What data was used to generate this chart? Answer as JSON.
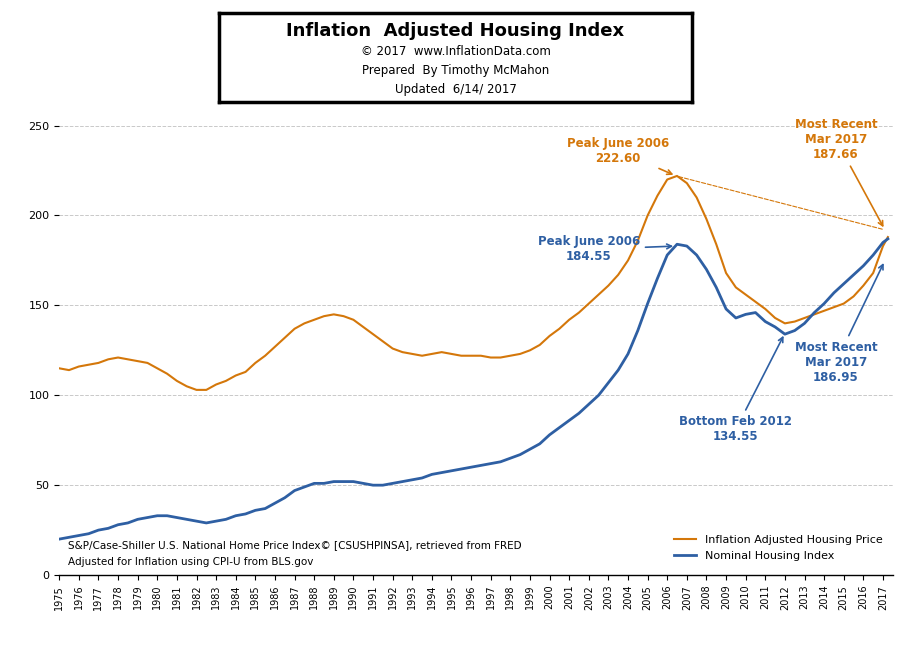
{
  "title": "Inflation  Adjusted Housing Index",
  "subtitle1": "© 2017  www.InflationData.com",
  "subtitle2": "Prepared  By Timothy McMahon",
  "subtitle3": "Updated  6/14/ 2017",
  "source_text1": "S&P/Case-Shiller U.S. National Home Price Index© [CSUSHPINSA], retrieved from FRED",
  "source_text2": "Adjusted for Inflation using CPI-U from BLS.gov",
  "legend1": "Inflation Adjusted Housing Price",
  "legend2": "Nominal Housing Index",
  "orange_color": "#D4770A",
  "blue_color": "#2E5FA3",
  "background_color": "#FFFFFF",
  "grid_color": "#BBBBBB",
  "ylim": [
    0,
    250
  ],
  "yticks": [
    0,
    50,
    100,
    150,
    200,
    250
  ],
  "years": [
    1975.0,
    1975.5,
    1976.0,
    1976.5,
    1977.0,
    1977.5,
    1978.0,
    1978.5,
    1979.0,
    1979.5,
    1980.0,
    1980.5,
    1981.0,
    1981.5,
    1982.0,
    1982.5,
    1983.0,
    1983.5,
    1984.0,
    1984.5,
    1985.0,
    1985.5,
    1986.0,
    1986.5,
    1987.0,
    1987.5,
    1988.0,
    1988.5,
    1989.0,
    1989.5,
    1990.0,
    1990.5,
    1991.0,
    1991.5,
    1992.0,
    1992.5,
    1993.0,
    1993.5,
    1994.0,
    1994.5,
    1995.0,
    1995.5,
    1996.0,
    1996.5,
    1997.0,
    1997.5,
    1998.0,
    1998.5,
    1999.0,
    1999.5,
    2000.0,
    2000.5,
    2001.0,
    2001.5,
    2002.0,
    2002.5,
    2003.0,
    2003.5,
    2004.0,
    2004.5,
    2005.0,
    2005.5,
    2006.0,
    2006.5,
    2007.0,
    2007.5,
    2008.0,
    2008.5,
    2009.0,
    2009.5,
    2010.0,
    2010.5,
    2011.0,
    2011.5,
    2012.0,
    2012.5,
    2013.0,
    2013.5,
    2014.0,
    2014.5,
    2015.0,
    2015.5,
    2016.0,
    2016.5,
    2017.0,
    2017.25
  ],
  "nominal": [
    20,
    21,
    22,
    23,
    25,
    26,
    28,
    29,
    31,
    32,
    33,
    33,
    32,
    31,
    30,
    29,
    30,
    31,
    33,
    34,
    36,
    37,
    40,
    43,
    47,
    49,
    51,
    51,
    52,
    52,
    52,
    51,
    50,
    50,
    51,
    52,
    53,
    54,
    56,
    57,
    58,
    59,
    60,
    61,
    62,
    63,
    65,
    67,
    70,
    73,
    78,
    82,
    86,
    90,
    95,
    100,
    107,
    114,
    123,
    136,
    151,
    165,
    178,
    184,
    183,
    178,
    170,
    160,
    148,
    143,
    145,
    146,
    141,
    138,
    134,
    136,
    140,
    146,
    151,
    157,
    162,
    167,
    172,
    178,
    185,
    187
  ],
  "inflation_adj": [
    115,
    114,
    116,
    117,
    118,
    120,
    121,
    120,
    119,
    118,
    115,
    112,
    108,
    105,
    103,
    103,
    106,
    108,
    111,
    113,
    118,
    122,
    127,
    132,
    137,
    140,
    142,
    144,
    145,
    144,
    142,
    138,
    134,
    130,
    126,
    124,
    123,
    122,
    123,
    124,
    123,
    122,
    122,
    122,
    121,
    121,
    122,
    123,
    125,
    128,
    133,
    137,
    142,
    146,
    151,
    156,
    161,
    167,
    175,
    186,
    200,
    211,
    220,
    222,
    218,
    210,
    198,
    184,
    168,
    160,
    156,
    152,
    148,
    143,
    140,
    141,
    143,
    145,
    147,
    149,
    151,
    155,
    161,
    168,
    183,
    188
  ]
}
